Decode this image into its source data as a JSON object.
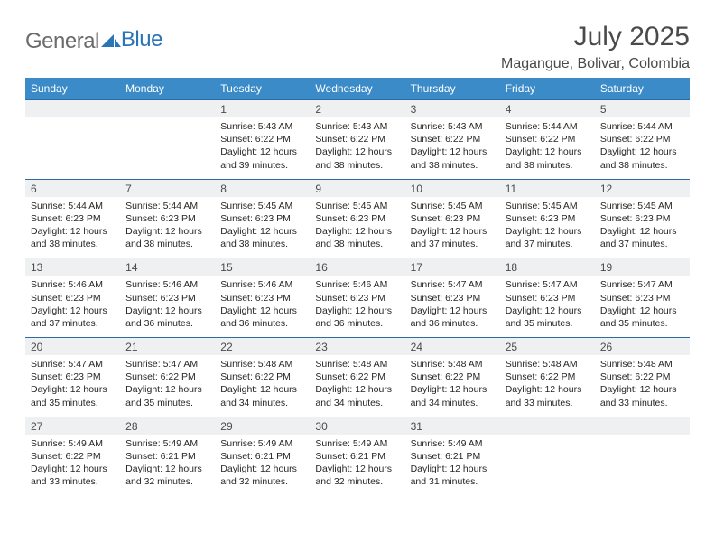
{
  "logo": {
    "text1": "General",
    "text2": "Blue"
  },
  "title": "July 2025",
  "location": "Magangue, Bolivar, Colombia",
  "colors": {
    "header_bg": "#3b8bc9",
    "header_text": "#ffffff",
    "daynum_bg": "#eef0f2",
    "border": "#2f6aa0",
    "body_text": "#262626",
    "title_text": "#4a4a4a",
    "logo_gray": "#6b6b6b",
    "logo_blue": "#2a74b8"
  },
  "daysOfWeek": [
    "Sunday",
    "Monday",
    "Tuesday",
    "Wednesday",
    "Thursday",
    "Friday",
    "Saturday"
  ],
  "weeks": [
    {
      "nums": [
        "",
        "",
        "1",
        "2",
        "3",
        "4",
        "5"
      ],
      "cells": [
        null,
        null,
        {
          "sr": "Sunrise: 5:43 AM",
          "ss": "Sunset: 6:22 PM",
          "dl1": "Daylight: 12 hours",
          "dl2": "and 39 minutes."
        },
        {
          "sr": "Sunrise: 5:43 AM",
          "ss": "Sunset: 6:22 PM",
          "dl1": "Daylight: 12 hours",
          "dl2": "and 38 minutes."
        },
        {
          "sr": "Sunrise: 5:43 AM",
          "ss": "Sunset: 6:22 PM",
          "dl1": "Daylight: 12 hours",
          "dl2": "and 38 minutes."
        },
        {
          "sr": "Sunrise: 5:44 AM",
          "ss": "Sunset: 6:22 PM",
          "dl1": "Daylight: 12 hours",
          "dl2": "and 38 minutes."
        },
        {
          "sr": "Sunrise: 5:44 AM",
          "ss": "Sunset: 6:22 PM",
          "dl1": "Daylight: 12 hours",
          "dl2": "and 38 minutes."
        }
      ]
    },
    {
      "nums": [
        "6",
        "7",
        "8",
        "9",
        "10",
        "11",
        "12"
      ],
      "cells": [
        {
          "sr": "Sunrise: 5:44 AM",
          "ss": "Sunset: 6:23 PM",
          "dl1": "Daylight: 12 hours",
          "dl2": "and 38 minutes."
        },
        {
          "sr": "Sunrise: 5:44 AM",
          "ss": "Sunset: 6:23 PM",
          "dl1": "Daylight: 12 hours",
          "dl2": "and 38 minutes."
        },
        {
          "sr": "Sunrise: 5:45 AM",
          "ss": "Sunset: 6:23 PM",
          "dl1": "Daylight: 12 hours",
          "dl2": "and 38 minutes."
        },
        {
          "sr": "Sunrise: 5:45 AM",
          "ss": "Sunset: 6:23 PM",
          "dl1": "Daylight: 12 hours",
          "dl2": "and 38 minutes."
        },
        {
          "sr": "Sunrise: 5:45 AM",
          "ss": "Sunset: 6:23 PM",
          "dl1": "Daylight: 12 hours",
          "dl2": "and 37 minutes."
        },
        {
          "sr": "Sunrise: 5:45 AM",
          "ss": "Sunset: 6:23 PM",
          "dl1": "Daylight: 12 hours",
          "dl2": "and 37 minutes."
        },
        {
          "sr": "Sunrise: 5:45 AM",
          "ss": "Sunset: 6:23 PM",
          "dl1": "Daylight: 12 hours",
          "dl2": "and 37 minutes."
        }
      ]
    },
    {
      "nums": [
        "13",
        "14",
        "15",
        "16",
        "17",
        "18",
        "19"
      ],
      "cells": [
        {
          "sr": "Sunrise: 5:46 AM",
          "ss": "Sunset: 6:23 PM",
          "dl1": "Daylight: 12 hours",
          "dl2": "and 37 minutes."
        },
        {
          "sr": "Sunrise: 5:46 AM",
          "ss": "Sunset: 6:23 PM",
          "dl1": "Daylight: 12 hours",
          "dl2": "and 36 minutes."
        },
        {
          "sr": "Sunrise: 5:46 AM",
          "ss": "Sunset: 6:23 PM",
          "dl1": "Daylight: 12 hours",
          "dl2": "and 36 minutes."
        },
        {
          "sr": "Sunrise: 5:46 AM",
          "ss": "Sunset: 6:23 PM",
          "dl1": "Daylight: 12 hours",
          "dl2": "and 36 minutes."
        },
        {
          "sr": "Sunrise: 5:47 AM",
          "ss": "Sunset: 6:23 PM",
          "dl1": "Daylight: 12 hours",
          "dl2": "and 36 minutes."
        },
        {
          "sr": "Sunrise: 5:47 AM",
          "ss": "Sunset: 6:23 PM",
          "dl1": "Daylight: 12 hours",
          "dl2": "and 35 minutes."
        },
        {
          "sr": "Sunrise: 5:47 AM",
          "ss": "Sunset: 6:23 PM",
          "dl1": "Daylight: 12 hours",
          "dl2": "and 35 minutes."
        }
      ]
    },
    {
      "nums": [
        "20",
        "21",
        "22",
        "23",
        "24",
        "25",
        "26"
      ],
      "cells": [
        {
          "sr": "Sunrise: 5:47 AM",
          "ss": "Sunset: 6:23 PM",
          "dl1": "Daylight: 12 hours",
          "dl2": "and 35 minutes."
        },
        {
          "sr": "Sunrise: 5:47 AM",
          "ss": "Sunset: 6:22 PM",
          "dl1": "Daylight: 12 hours",
          "dl2": "and 35 minutes."
        },
        {
          "sr": "Sunrise: 5:48 AM",
          "ss": "Sunset: 6:22 PM",
          "dl1": "Daylight: 12 hours",
          "dl2": "and 34 minutes."
        },
        {
          "sr": "Sunrise: 5:48 AM",
          "ss": "Sunset: 6:22 PM",
          "dl1": "Daylight: 12 hours",
          "dl2": "and 34 minutes."
        },
        {
          "sr": "Sunrise: 5:48 AM",
          "ss": "Sunset: 6:22 PM",
          "dl1": "Daylight: 12 hours",
          "dl2": "and 34 minutes."
        },
        {
          "sr": "Sunrise: 5:48 AM",
          "ss": "Sunset: 6:22 PM",
          "dl1": "Daylight: 12 hours",
          "dl2": "and 33 minutes."
        },
        {
          "sr": "Sunrise: 5:48 AM",
          "ss": "Sunset: 6:22 PM",
          "dl1": "Daylight: 12 hours",
          "dl2": "and 33 minutes."
        }
      ]
    },
    {
      "nums": [
        "27",
        "28",
        "29",
        "30",
        "31",
        "",
        ""
      ],
      "cells": [
        {
          "sr": "Sunrise: 5:49 AM",
          "ss": "Sunset: 6:22 PM",
          "dl1": "Daylight: 12 hours",
          "dl2": "and 33 minutes."
        },
        {
          "sr": "Sunrise: 5:49 AM",
          "ss": "Sunset: 6:21 PM",
          "dl1": "Daylight: 12 hours",
          "dl2": "and 32 minutes."
        },
        {
          "sr": "Sunrise: 5:49 AM",
          "ss": "Sunset: 6:21 PM",
          "dl1": "Daylight: 12 hours",
          "dl2": "and 32 minutes."
        },
        {
          "sr": "Sunrise: 5:49 AM",
          "ss": "Sunset: 6:21 PM",
          "dl1": "Daylight: 12 hours",
          "dl2": "and 32 minutes."
        },
        {
          "sr": "Sunrise: 5:49 AM",
          "ss": "Sunset: 6:21 PM",
          "dl1": "Daylight: 12 hours",
          "dl2": "and 31 minutes."
        },
        null,
        null
      ]
    }
  ]
}
